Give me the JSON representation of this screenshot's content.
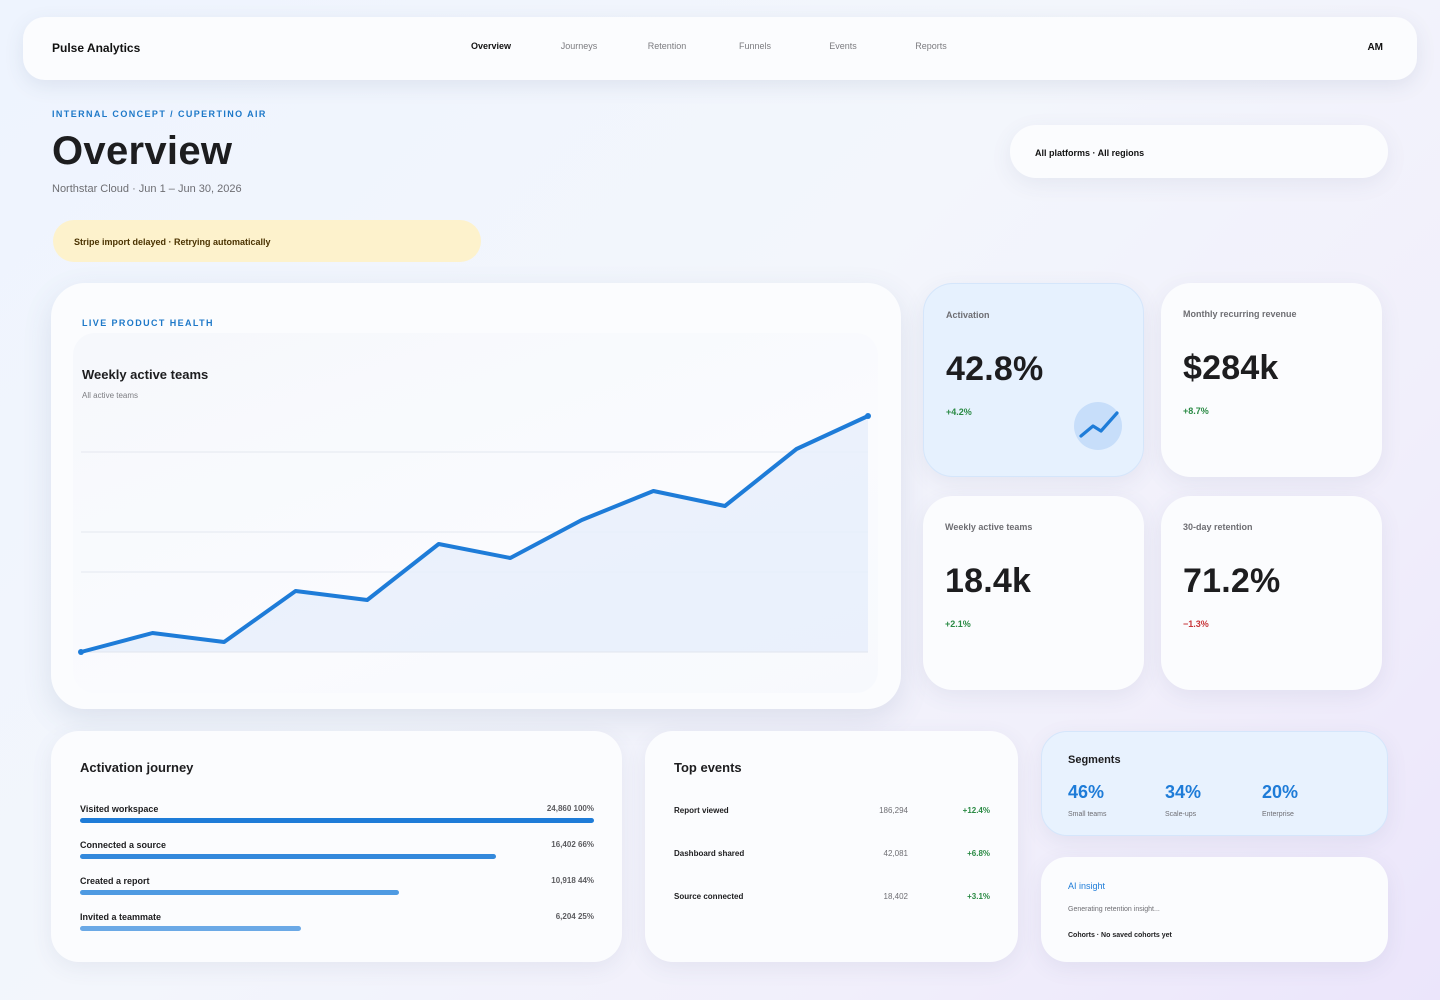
{
  "app": {
    "brand": "Pulse Analytics",
    "avatar_initials": "AM",
    "nav_tabs": [
      "Overview",
      "Journeys",
      "Retention",
      "Funnels",
      "Events",
      "Reports"
    ],
    "active_tab": "Overview"
  },
  "header": {
    "eyebrow": "INTERNAL CONCEPT / CUPERTINO AIR",
    "title": "Overview",
    "subtitle": "Northstar Cloud · Jun 1 – Jun 30, 2026",
    "filter_label": "All platforms · All regions"
  },
  "alert": {
    "text": "Stripe import delayed · Retrying automatically",
    "color": "#fdf2cc"
  },
  "hero": {
    "eyebrow": "LIVE PRODUCT HEALTH",
    "title": "Weekly active teams",
    "subtitle": "All active teams"
  },
  "chart_data": {
    "type": "line",
    "title": "Weekly active teams",
    "subtitle": "All active teams",
    "x": [
      1,
      2,
      3,
      4,
      5,
      6,
      7,
      8,
      9,
      10,
      11,
      12
    ],
    "series": [
      {
        "values": [
          0,
          19,
          10,
          61,
          52,
          108,
          94,
          132,
          161,
          146,
          203,
          236
        ]
      }
    ],
    "ylim": [
      0,
      260
    ],
    "grid": true,
    "area_fill": true,
    "color": "#1e7cd8"
  },
  "metrics": [
    {
      "label": "Activation",
      "value": "42.8%",
      "delta": "+4.2%",
      "trend": "up",
      "icon": "trend-up-icon"
    },
    {
      "label": "Monthly recurring revenue",
      "value": "$284k",
      "delta": "+8.7%",
      "trend": "up"
    },
    {
      "label": "Weekly active teams",
      "value": "18.4k",
      "delta": "+2.1%",
      "trend": "up"
    },
    {
      "label": "30-day retention",
      "value": "71.2%",
      "delta": "−1.3%",
      "trend": "down"
    }
  ],
  "journey": {
    "title": "Activation journey",
    "steps": [
      {
        "label": "Visited workspace",
        "stat": "24,860 100%",
        "pct": 100
      },
      {
        "label": "Connected a source",
        "stat": "16,402 66%",
        "pct": 81
      },
      {
        "label": "Created a report",
        "stat": "10,918 44%",
        "pct": 62
      },
      {
        "label": "Invited a teammate",
        "stat": "6,204 25%",
        "pct": 43
      }
    ]
  },
  "events": {
    "title": "Top events",
    "rows": [
      {
        "name": "Report viewed",
        "count": "186,294",
        "change": "+12.4%"
      },
      {
        "name": "Dashboard shared",
        "count": "42,081",
        "change": "+6.8%"
      },
      {
        "name": "Source connected",
        "count": "18,402",
        "change": "+3.1%"
      }
    ]
  },
  "segments": {
    "title": "Segments",
    "items": [
      {
        "value": "46%",
        "label": "Small teams"
      },
      {
        "value": "34%",
        "label": "Scale-ups"
      },
      {
        "value": "20%",
        "label": "Enterprise"
      }
    ]
  },
  "insight": {
    "title": "AI insight",
    "status": "Generating retention insight...",
    "cohorts": "Cohorts · No saved cohorts yet"
  },
  "colors": {
    "accent": "#1e7cd8",
    "positive": "#2a8a44",
    "negative": "#c8363a"
  }
}
